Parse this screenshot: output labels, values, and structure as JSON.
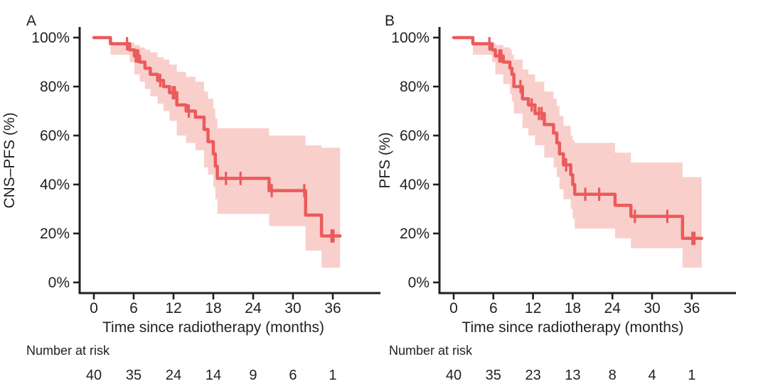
{
  "colors": {
    "curve": "#EB5B5B",
    "band": "#F9CFCC",
    "text": "#231F20",
    "axis": "#231F20",
    "background": "#ffffff"
  },
  "chart_data": {
    "type": "line",
    "subtype": "kaplan-meier-step",
    "grid": false,
    "legend": "none",
    "xlabel": "Time since radiotherapy (months)",
    "xticks": [
      0,
      6,
      12,
      18,
      24,
      30,
      36
    ],
    "ytick_values": [
      0,
      20,
      40,
      60,
      80,
      100
    ],
    "ytick_labels": [
      "0%",
      "20%",
      "40%",
      "60%",
      "80%",
      "100%"
    ],
    "xlim": [
      0,
      42
    ],
    "ylim": [
      0,
      100
    ],
    "panels": [
      {
        "label": "A",
        "ylabel": "CNS–PFS (%)",
        "series": {
          "name": "CNS-PFS",
          "unit": "percent",
          "steps": [
            [
              0,
              100
            ],
            [
              2.5,
              97.5
            ],
            [
              5.4,
              95
            ],
            [
              6.1,
              92.5
            ],
            [
              6.9,
              90
            ],
            [
              7.7,
              87.5
            ],
            [
              8.5,
              85
            ],
            [
              9.6,
              82.5
            ],
            [
              10.5,
              80
            ],
            [
              11.4,
              77.5
            ],
            [
              12.5,
              72.5
            ],
            [
              13.9,
              70
            ],
            [
              15.3,
              67.5
            ],
            [
              16.6,
              62.5
            ],
            [
              17.2,
              57.5
            ],
            [
              18.0,
              52.5
            ],
            [
              18.3,
              47.5
            ],
            [
              18.6,
              42.5
            ],
            [
              26.4,
              37.5
            ],
            [
              31.9,
              27.5
            ],
            [
              34.3,
              19
            ]
          ],
          "end_time": 37.1
        },
        "censor_times": [
          5.0,
          6.3,
          6.5,
          6.7,
          10.0,
          11.9,
          12.2,
          14.3,
          19.9,
          22.1,
          26.8,
          31.7,
          35.8,
          36.1
        ],
        "ci_band": [
          [
            2.5,
            93,
            97.5
          ],
          [
            5.4,
            90,
            98
          ],
          [
            6.1,
            85,
            97
          ],
          [
            6.9,
            82,
            96
          ],
          [
            7.7,
            79,
            95
          ],
          [
            8.5,
            76,
            94
          ],
          [
            9.6,
            73,
            92
          ],
          [
            10.5,
            70,
            91
          ],
          [
            11.4,
            66,
            89
          ],
          [
            12.5,
            60,
            86
          ],
          [
            13.9,
            57,
            84
          ],
          [
            15.3,
            54,
            82
          ],
          [
            16.6,
            47,
            78
          ],
          [
            17.2,
            44,
            75
          ],
          [
            18.0,
            39,
            71
          ],
          [
            18.3,
            34,
            67
          ],
          [
            18.6,
            28,
            63
          ],
          [
            26.4,
            23,
            60
          ],
          [
            31.9,
            13,
            56
          ],
          [
            34.3,
            6,
            55
          ]
        ],
        "number_at_risk": {
          "label": "Number at risk",
          "times": [
            0,
            6,
            12,
            18,
            24,
            30,
            36
          ],
          "values": [
            40,
            35,
            24,
            14,
            9,
            6,
            1
          ]
        }
      },
      {
        "label": "B",
        "ylabel": "PFS (%)",
        "series": {
          "name": "PFS",
          "unit": "percent",
          "steps": [
            [
              0,
              100
            ],
            [
              2.9,
              97.5
            ],
            [
              5.8,
              95
            ],
            [
              6.3,
              92.5
            ],
            [
              7.5,
              90
            ],
            [
              8.5,
              87.5
            ],
            [
              8.8,
              85
            ],
            [
              9.1,
              80
            ],
            [
              10.4,
              75
            ],
            [
              11.3,
              72.5
            ],
            [
              12.3,
              69
            ],
            [
              13.7,
              64.5
            ],
            [
              15.1,
              61
            ],
            [
              15.6,
              57
            ],
            [
              16.0,
              52.5
            ],
            [
              16.6,
              48
            ],
            [
              17.7,
              44
            ],
            [
              18.0,
              40
            ],
            [
              18.3,
              36
            ],
            [
              24.4,
              31.5
            ],
            [
              26.8,
              27
            ],
            [
              34.6,
              18
            ]
          ],
          "end_time": 37.5
        },
        "censor_times": [
          5.4,
          6.9,
          7.2,
          10.1,
          11.8,
          12.9,
          13.3,
          17.0,
          19.9,
          22.0,
          27.4,
          32.3,
          36.1,
          36.4
        ],
        "ci_band": [
          [
            2.9,
            93,
            97.5
          ],
          [
            5.8,
            90,
            98
          ],
          [
            6.3,
            85,
            97
          ],
          [
            7.5,
            81,
            96
          ],
          [
            8.5,
            77,
            95
          ],
          [
            8.8,
            74,
            93
          ],
          [
            9.1,
            69,
            91
          ],
          [
            10.4,
            63,
            87
          ],
          [
            11.3,
            60,
            85
          ],
          [
            12.3,
            56,
            82
          ],
          [
            13.7,
            51,
            78
          ],
          [
            15.1,
            47,
            75
          ],
          [
            15.6,
            43,
            72
          ],
          [
            16.0,
            38,
            68
          ],
          [
            16.6,
            34,
            64
          ],
          [
            17.7,
            30,
            60
          ],
          [
            18.0,
            26,
            58
          ],
          [
            18.3,
            22,
            57
          ],
          [
            24.4,
            18,
            53
          ],
          [
            26.8,
            14,
            49
          ],
          [
            34.6,
            6,
            43
          ]
        ],
        "number_at_risk": {
          "label": "Number at risk",
          "times": [
            0,
            6,
            12,
            18,
            24,
            30,
            36
          ],
          "values": [
            40,
            35,
            23,
            13,
            8,
            4,
            1
          ]
        }
      }
    ]
  }
}
